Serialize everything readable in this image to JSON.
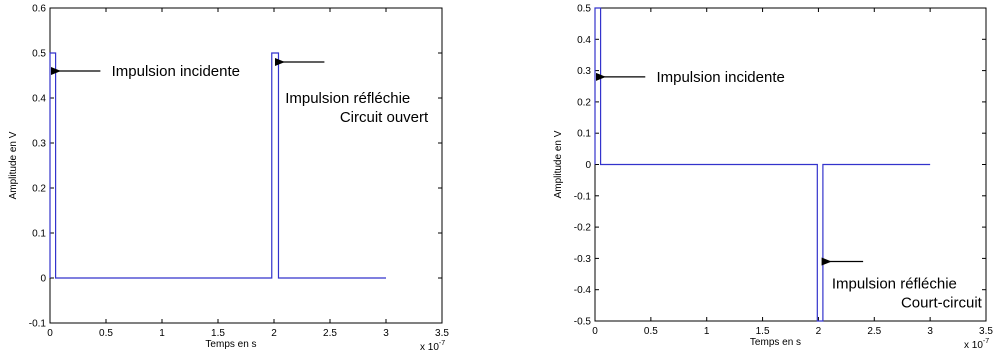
{
  "chart_data": [
    {
      "type": "line",
      "xlabel": "Temps en s",
      "ylabel": "Amplitude en V",
      "x_exponent": "x 10",
      "x_exponent_power": "-7",
      "xlim": [
        0,
        3.5
      ],
      "ylim": [
        -0.1,
        0.6
      ],
      "xticks": [
        "0",
        "0.5",
        "1",
        "1.5",
        "2",
        "2.5",
        "3",
        "3.5"
      ],
      "xtick_values": [
        0,
        0.5,
        1,
        1.5,
        2,
        2.5,
        3,
        3.5
      ],
      "yticks": [
        "-0.1",
        "0",
        "0.1",
        "0.2",
        "0.3",
        "0.4",
        "0.5",
        "0.6"
      ],
      "ytick_values": [
        -0.1,
        0,
        0.1,
        0.2,
        0.3,
        0.4,
        0.5,
        0.6
      ],
      "grid": false,
      "line_color": "#3333cc",
      "series": [
        {
          "x": [
            0,
            0,
            0.05,
            0.05,
            1.98,
            1.98,
            2.04,
            2.04,
            3.0
          ],
          "y": [
            0,
            0.5,
            0.5,
            0,
            0,
            0.5,
            0.5,
            0,
            0
          ]
        }
      ],
      "annotations": [
        {
          "lines": [
            "Impulsion incidente"
          ],
          "x": 0.55,
          "y": 0.46,
          "arrow_from": [
            0.45,
            0.46
          ],
          "arrow_to": [
            0.08,
            0.46
          ]
        },
        {
          "lines": [
            "Impulsion réfléchie",
            "Circuit ouvert"
          ],
          "x": 2.1,
          "y": 0.4,
          "arrow_from": [
            2.45,
            0.48
          ],
          "arrow_to": [
            2.08,
            0.48
          ]
        }
      ]
    },
    {
      "type": "line",
      "xlabel": "Temps en s",
      "ylabel": "Amplitude en V",
      "x_exponent": "x 10",
      "x_exponent_power": "-7",
      "xlim": [
        0,
        3.5
      ],
      "ylim": [
        -0.5,
        0.5
      ],
      "xticks": [
        "0",
        "0.5",
        "1",
        "1.5",
        "2",
        "2.5",
        "3",
        "3.5"
      ],
      "xtick_values": [
        0,
        0.5,
        1,
        1.5,
        2,
        2.5,
        3,
        3.5
      ],
      "yticks": [
        "-0.5",
        "-0.4",
        "-0.3",
        "-0.2",
        "-0.1",
        "0",
        "0.1",
        "0.2",
        "0.3",
        "0.4",
        "0.5"
      ],
      "ytick_values": [
        -0.5,
        -0.4,
        -0.3,
        -0.2,
        -0.1,
        0,
        0.1,
        0.2,
        0.3,
        0.4,
        0.5
      ],
      "grid": false,
      "line_color": "#3333cc",
      "series": [
        {
          "x": [
            0,
            0,
            0.05,
            0.05,
            1.99,
            1.99,
            2.04,
            2.04,
            3.0
          ],
          "y": [
            0,
            0.5,
            0.5,
            0,
            0,
            -0.5,
            -0.5,
            0,
            0
          ]
        }
      ],
      "annotations": [
        {
          "lines": [
            "Impulsion incidente"
          ],
          "x": 0.55,
          "y": 0.28,
          "arrow_from": [
            0.45,
            0.28
          ],
          "arrow_to": [
            0.08,
            0.28
          ]
        },
        {
          "lines": [
            "Impulsion réfléchie",
            "Court-circuit"
          ],
          "x": 2.12,
          "y": -0.38,
          "arrow_from": [
            2.4,
            -0.31
          ],
          "arrow_to": [
            2.1,
            -0.31
          ]
        }
      ]
    }
  ]
}
